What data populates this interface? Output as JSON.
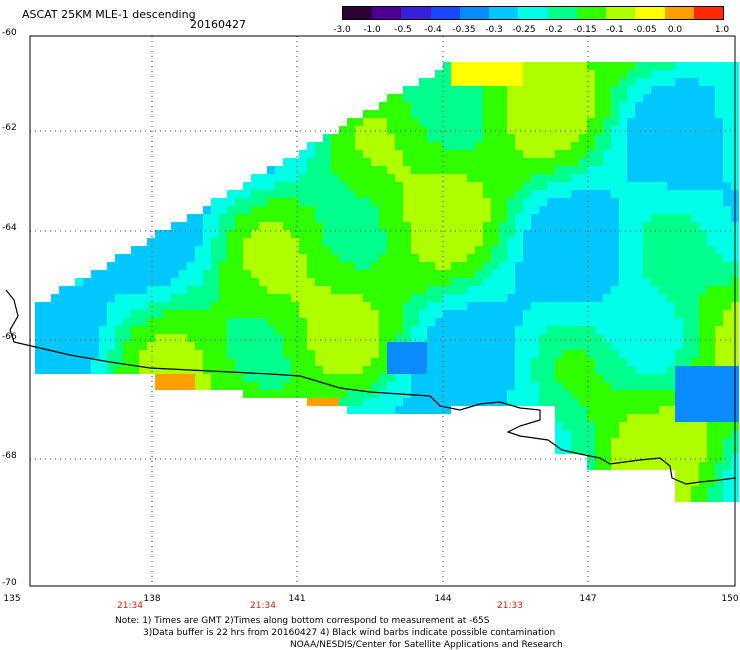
{
  "header": {
    "title": "ASCAT 25KM MLE-1 descending",
    "date": "20160427"
  },
  "colorbar": {
    "labels": [
      "-3.0",
      "-1.0",
      "-0.5",
      "-0.4",
      "-0.35",
      "-0.3",
      "-0.25",
      "-0.2",
      "-0.15",
      "-0.1",
      "-0.05",
      "0.0",
      "1.0"
    ],
    "colors": [
      "#2b0033",
      "#4a0090",
      "#3820d8",
      "#1848ff",
      "#0a8cff",
      "#00c8ff",
      "#00ffe8",
      "#00ff8c",
      "#30ff00",
      "#b0ff00",
      "#ffff00",
      "#ffa000",
      "#ff2800"
    ]
  },
  "map": {
    "lat_labels": [
      "-60",
      "-62",
      "-64",
      "-66",
      "-68",
      "-70"
    ],
    "lon_labels": [
      "135",
      "138",
      "141",
      "144",
      "147",
      "150"
    ],
    "pass_times": [
      "21:34",
      "21:34",
      "21:33"
    ]
  },
  "footer": {
    "note_line1": "Note: 1) Times are GMT 2)Times along bottom correspond to measurement at -65S",
    "note_line2": "3)Data buffer is 22 hrs from 20160427 4) Black wind barbs indicate possible contamination",
    "credit": "NOAA/NESDIS/Center for Satellite Applications and Research"
  }
}
